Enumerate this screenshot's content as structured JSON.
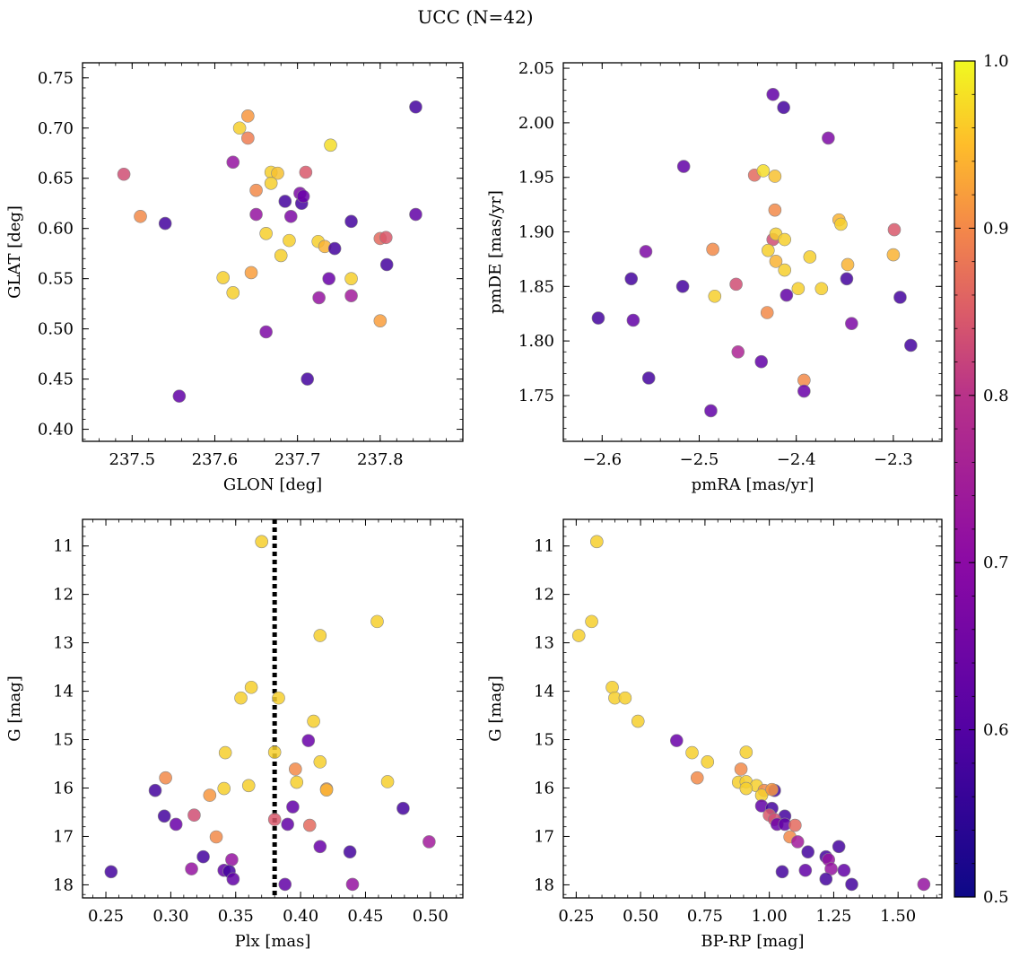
{
  "figure": {
    "title": "UCC (N=42)",
    "colormap": {
      "name": "plasma",
      "min": 0.5,
      "max": 1.0,
      "ticks": [
        {
          "v": 0.5,
          "label": "0.5"
        },
        {
          "v": 0.6,
          "label": "0.6"
        },
        {
          "v": 0.7,
          "label": "0.7"
        },
        {
          "v": 0.8,
          "label": "0.8"
        },
        {
          "v": 0.9,
          "label": "0.9"
        },
        {
          "v": 1.0,
          "label": "1.0"
        }
      ]
    },
    "marker_edge_color": "#888888",
    "marker_alpha": 0.85
  },
  "chart_data": [
    {
      "type": "scatter",
      "xlabel": "GLON [deg]",
      "ylabel": "GLAT [deg]",
      "xlim": [
        237.44,
        237.9
      ],
      "ylim": [
        0.388,
        0.765
      ],
      "xticks": [
        {
          "v": 237.5,
          "label": "237.5"
        },
        {
          "v": 237.6,
          "label": "237.6"
        },
        {
          "v": 237.7,
          "label": "237.7"
        },
        {
          "v": 237.8,
          "label": "237.8"
        }
      ],
      "yticks": [
        {
          "v": 0.4,
          "label": "0.40"
        },
        {
          "v": 0.45,
          "label": "0.45"
        },
        {
          "v": 0.5,
          "label": "0.50"
        },
        {
          "v": 0.55,
          "label": "0.55"
        },
        {
          "v": 0.6,
          "label": "0.60"
        },
        {
          "v": 0.65,
          "label": "0.65"
        },
        {
          "v": 0.7,
          "label": "0.70"
        },
        {
          "v": 0.75,
          "label": "0.75"
        }
      ],
      "points": [
        [
          237.49,
          0.654,
          0.8
        ],
        [
          237.51,
          0.612,
          0.9
        ],
        [
          237.54,
          0.605,
          0.55
        ],
        [
          237.557,
          0.433,
          0.6
        ],
        [
          237.64,
          0.712,
          0.92
        ],
        [
          237.63,
          0.7,
          0.97
        ],
        [
          237.64,
          0.69,
          0.88
        ],
        [
          237.622,
          0.666,
          0.68
        ],
        [
          237.668,
          0.656,
          0.97
        ],
        [
          237.676,
          0.655,
          0.96
        ],
        [
          237.65,
          0.638,
          0.9
        ],
        [
          237.668,
          0.645,
          0.97
        ],
        [
          237.71,
          0.656,
          0.82
        ],
        [
          237.74,
          0.683,
          0.98
        ],
        [
          237.685,
          0.627,
          0.55
        ],
        [
          237.705,
          0.625,
          0.55
        ],
        [
          237.703,
          0.635,
          0.65
        ],
        [
          237.707,
          0.632,
          0.62
        ],
        [
          237.65,
          0.614,
          0.68
        ],
        [
          237.692,
          0.612,
          0.65
        ],
        [
          237.662,
          0.595,
          0.97
        ],
        [
          237.69,
          0.588,
          0.97
        ],
        [
          237.725,
          0.587,
          0.97
        ],
        [
          237.733,
          0.582,
          0.95
        ],
        [
          237.745,
          0.58,
          0.55
        ],
        [
          237.765,
          0.607,
          0.55
        ],
        [
          237.843,
          0.721,
          0.55
        ],
        [
          237.843,
          0.614,
          0.6
        ],
        [
          237.8,
          0.59,
          0.85
        ],
        [
          237.807,
          0.591,
          0.82
        ],
        [
          237.808,
          0.564,
          0.55
        ],
        [
          237.68,
          0.573,
          0.97
        ],
        [
          237.61,
          0.551,
          0.97
        ],
        [
          237.644,
          0.556,
          0.93
        ],
        [
          237.622,
          0.536,
          0.97
        ],
        [
          237.738,
          0.55,
          0.62
        ],
        [
          237.765,
          0.55,
          0.97
        ],
        [
          237.726,
          0.531,
          0.68
        ],
        [
          237.765,
          0.533,
          0.7
        ],
        [
          237.662,
          0.497,
          0.65
        ],
        [
          237.8,
          0.508,
          0.93
        ],
        [
          237.712,
          0.45,
          0.55
        ]
      ]
    },
    {
      "type": "scatter",
      "xlabel": "pmRA [mas/yr]",
      "ylabel": "pmDE [mas/yr]",
      "xlim": [
        -2.64,
        -2.25
      ],
      "ylim": [
        1.708,
        2.055
      ],
      "xticks": [
        {
          "v": -2.6,
          "label": "−2.6"
        },
        {
          "v": -2.5,
          "label": "−2.5"
        },
        {
          "v": -2.4,
          "label": "−2.4"
        },
        {
          "v": -2.3,
          "label": "−2.3"
        }
      ],
      "yticks": [
        {
          "v": 1.75,
          "label": "1.75"
        },
        {
          "v": 1.8,
          "label": "1.80"
        },
        {
          "v": 1.85,
          "label": "1.85"
        },
        {
          "v": 1.9,
          "label": "1.90"
        },
        {
          "v": 1.95,
          "label": "1.95"
        },
        {
          "v": 2.0,
          "label": "2.00"
        },
        {
          "v": 2.05,
          "label": "2.05"
        }
      ],
      "points": [
        [
          -2.424,
          2.026,
          0.6
        ],
        [
          -2.413,
          2.014,
          0.55
        ],
        [
          -2.367,
          1.986,
          0.65
        ],
        [
          -2.516,
          1.96,
          0.6
        ],
        [
          -2.443,
          1.952,
          0.85
        ],
        [
          -2.434,
          1.956,
          0.98
        ],
        [
          -2.422,
          1.951,
          0.96
        ],
        [
          -2.422,
          1.92,
          0.9
        ],
        [
          -2.356,
          1.911,
          0.95
        ],
        [
          -2.354,
          1.907,
          0.97
        ],
        [
          -2.299,
          1.902,
          0.82
        ],
        [
          -2.555,
          1.882,
          0.65
        ],
        [
          -2.486,
          1.884,
          0.9
        ],
        [
          -2.424,
          1.893,
          0.8
        ],
        [
          -2.421,
          1.898,
          0.97
        ],
        [
          -2.412,
          1.893,
          0.97
        ],
        [
          -2.429,
          1.883,
          0.97
        ],
        [
          -2.421,
          1.873,
          0.95
        ],
        [
          -2.386,
          1.877,
          0.97
        ],
        [
          -2.347,
          1.87,
          0.95
        ],
        [
          -2.3,
          1.879,
          0.95
        ],
        [
          -2.57,
          1.857,
          0.55
        ],
        [
          -2.412,
          1.865,
          0.97
        ],
        [
          -2.462,
          1.852,
          0.8
        ],
        [
          -2.517,
          1.85,
          0.55
        ],
        [
          -2.398,
          1.848,
          0.97
        ],
        [
          -2.374,
          1.848,
          0.97
        ],
        [
          -2.348,
          1.857,
          0.55
        ],
        [
          -2.293,
          1.84,
          0.55
        ],
        [
          -2.484,
          1.841,
          0.97
        ],
        [
          -2.41,
          1.842,
          0.6
        ],
        [
          -2.43,
          1.826,
          0.9
        ],
        [
          -2.604,
          1.821,
          0.55
        ],
        [
          -2.568,
          1.819,
          0.6
        ],
        [
          -2.343,
          1.816,
          0.65
        ],
        [
          -2.282,
          1.796,
          0.55
        ],
        [
          -2.46,
          1.79,
          0.72
        ],
        [
          -2.436,
          1.781,
          0.6
        ],
        [
          -2.552,
          1.766,
          0.55
        ],
        [
          -2.392,
          1.764,
          0.9
        ],
        [
          -2.392,
          1.754,
          0.62
        ],
        [
          -2.488,
          1.736,
          0.6
        ]
      ]
    },
    {
      "type": "scatter",
      "xlabel": "Plx [mas]",
      "ylabel": "G [mag]",
      "yinverted": true,
      "xlim": [
        0.232,
        0.525
      ],
      "ylim": [
        10.45,
        18.27
      ],
      "vline": {
        "x": 0.38,
        "style": "dotted"
      },
      "xticks": [
        {
          "v": 0.25,
          "label": "0.25"
        },
        {
          "v": 0.3,
          "label": "0.30"
        },
        {
          "v": 0.35,
          "label": "0.35"
        },
        {
          "v": 0.4,
          "label": "0.40"
        },
        {
          "v": 0.45,
          "label": "0.45"
        },
        {
          "v": 0.5,
          "label": "0.50"
        }
      ],
      "yticks": [
        {
          "v": 11,
          "label": "11"
        },
        {
          "v": 12,
          "label": "12"
        },
        {
          "v": 13,
          "label": "13"
        },
        {
          "v": 14,
          "label": "14"
        },
        {
          "v": 15,
          "label": "15"
        },
        {
          "v": 16,
          "label": "16"
        },
        {
          "v": 17,
          "label": "17"
        },
        {
          "v": 18,
          "label": "18"
        }
      ],
      "points": [
        [
          0.37,
          10.91,
          0.97
        ],
        [
          0.459,
          12.56,
          0.97
        ],
        [
          0.415,
          12.85,
          0.97
        ],
        [
          0.362,
          13.92,
          0.97
        ],
        [
          0.354,
          14.14,
          0.97
        ],
        [
          0.383,
          14.14,
          0.97
        ],
        [
          0.41,
          14.62,
          0.97
        ],
        [
          0.406,
          15.02,
          0.62
        ],
        [
          0.342,
          15.27,
          0.97
        ],
        [
          0.38,
          15.26,
          0.97
        ],
        [
          0.415,
          15.46,
          0.97
        ],
        [
          0.396,
          15.61,
          0.9
        ],
        [
          0.296,
          15.79,
          0.9
        ],
        [
          0.397,
          15.88,
          0.97
        ],
        [
          0.467,
          15.87,
          0.97
        ],
        [
          0.288,
          16.05,
          0.55
        ],
        [
          0.341,
          16.01,
          0.97
        ],
        [
          0.36,
          15.95,
          0.97
        ],
        [
          0.33,
          16.15,
          0.92
        ],
        [
          0.42,
          16.02,
          0.92
        ],
        [
          0.42,
          16.04,
          0.95
        ],
        [
          0.479,
          16.42,
          0.55
        ],
        [
          0.394,
          16.39,
          0.6
        ],
        [
          0.295,
          16.58,
          0.55
        ],
        [
          0.318,
          16.56,
          0.8
        ],
        [
          0.38,
          16.65,
          0.82
        ],
        [
          0.304,
          16.75,
          0.62
        ],
        [
          0.39,
          16.75,
          0.6
        ],
        [
          0.407,
          16.77,
          0.85
        ],
        [
          0.335,
          17.01,
          0.9
        ],
        [
          0.415,
          17.21,
          0.62
        ],
        [
          0.499,
          17.11,
          0.7
        ],
        [
          0.438,
          17.32,
          0.55
        ],
        [
          0.325,
          17.42,
          0.55
        ],
        [
          0.347,
          17.48,
          0.68
        ],
        [
          0.316,
          17.67,
          0.68
        ],
        [
          0.341,
          17.7,
          0.6
        ],
        [
          0.345,
          17.72,
          0.55
        ],
        [
          0.348,
          17.88,
          0.6
        ],
        [
          0.254,
          17.73,
          0.55
        ],
        [
          0.388,
          17.99,
          0.6
        ],
        [
          0.44,
          17.99,
          0.68
        ]
      ]
    },
    {
      "type": "scatter",
      "xlabel": "BP-RP [mag]",
      "ylabel": "G [mag]",
      "yinverted": true,
      "xlim": [
        0.2,
        1.67
      ],
      "ylim": [
        10.45,
        18.27
      ],
      "xticks": [
        {
          "v": 0.25,
          "label": "0.25"
        },
        {
          "v": 0.5,
          "label": "0.50"
        },
        {
          "v": 0.75,
          "label": "0.75"
        },
        {
          "v": 1.0,
          "label": "1.00"
        },
        {
          "v": 1.25,
          "label": "1.25"
        },
        {
          "v": 1.5,
          "label": "1.50"
        }
      ],
      "yticks": [
        {
          "v": 11,
          "label": "11"
        },
        {
          "v": 12,
          "label": "12"
        },
        {
          "v": 13,
          "label": "13"
        },
        {
          "v": 14,
          "label": "14"
        },
        {
          "v": 15,
          "label": "15"
        },
        {
          "v": 16,
          "label": "16"
        },
        {
          "v": 17,
          "label": "17"
        },
        {
          "v": 18,
          "label": "18"
        }
      ],
      "points": [
        [
          0.33,
          10.91,
          0.97
        ],
        [
          0.31,
          12.56,
          0.97
        ],
        [
          0.26,
          12.85,
          0.97
        ],
        [
          0.39,
          13.92,
          0.97
        ],
        [
          0.4,
          14.14,
          0.97
        ],
        [
          0.44,
          14.14,
          0.97
        ],
        [
          0.49,
          14.62,
          0.97
        ],
        [
          0.64,
          15.02,
          0.62
        ],
        [
          0.7,
          15.27,
          0.97
        ],
        [
          0.91,
          15.26,
          0.97
        ],
        [
          0.76,
          15.46,
          0.97
        ],
        [
          0.89,
          15.61,
          0.9
        ],
        [
          0.72,
          15.79,
          0.9
        ],
        [
          0.88,
          15.88,
          0.97
        ],
        [
          0.91,
          15.87,
          0.97
        ],
        [
          0.95,
          15.95,
          0.97
        ],
        [
          0.98,
          16.05,
          0.9
        ],
        [
          1.02,
          16.05,
          0.55
        ],
        [
          0.91,
          16.01,
          0.97
        ],
        [
          0.97,
          16.15,
          0.97
        ],
        [
          1.01,
          16.03,
          0.92
        ],
        [
          0.97,
          16.37,
          0.6
        ],
        [
          1.01,
          16.42,
          0.55
        ],
        [
          1.06,
          16.58,
          0.55
        ],
        [
          1.0,
          16.56,
          0.82
        ],
        [
          1.02,
          16.65,
          0.8
        ],
        [
          1.03,
          16.75,
          0.62
        ],
        [
          1.06,
          16.75,
          0.6
        ],
        [
          1.1,
          16.77,
          0.85
        ],
        [
          1.08,
          17.01,
          0.9
        ],
        [
          1.11,
          17.11,
          0.7
        ],
        [
          1.15,
          17.32,
          0.55
        ],
        [
          1.27,
          17.21,
          0.55
        ],
        [
          1.22,
          17.42,
          0.55
        ],
        [
          1.23,
          17.48,
          0.68
        ],
        [
          1.24,
          17.67,
          0.68
        ],
        [
          1.14,
          17.7,
          0.6
        ],
        [
          1.29,
          17.7,
          0.6
        ],
        [
          1.05,
          17.73,
          0.55
        ],
        [
          1.22,
          17.88,
          0.55
        ],
        [
          1.32,
          17.99,
          0.55
        ],
        [
          1.6,
          17.99,
          0.68
        ]
      ]
    }
  ]
}
